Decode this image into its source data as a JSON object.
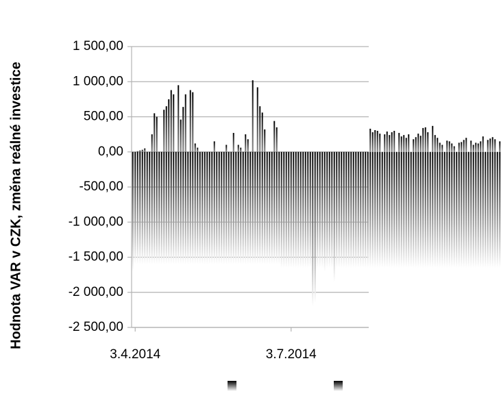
{
  "chart_data": {
    "type": "bar",
    "ylabel": "Hodnota VAR v CZK, změna reálné investice",
    "ylim": [
      -2500,
      1500
    ],
    "yticks": [
      {
        "value": -2500,
        "label": "-2 500,00"
      },
      {
        "value": -2000,
        "label": "-2 000,00"
      },
      {
        "value": -1500,
        "label": "-1 500,00"
      },
      {
        "value": -1000,
        "label": "-1 000,00"
      },
      {
        "value": -500,
        "label": "-500,00"
      },
      {
        "value": 0,
        "label": "0,00"
      },
      {
        "value": 500,
        "label": "500,00"
      },
      {
        "value": 1000,
        "label": "1 000,00"
      },
      {
        "value": 1500,
        "label": "1 500,00"
      }
    ],
    "grid": true,
    "categories": [
      null,
      "3.4.2014",
      null,
      null,
      null,
      null,
      null,
      null,
      null,
      null,
      null,
      null,
      null,
      null,
      null,
      null,
      null,
      null,
      null,
      null,
      null,
      null,
      null,
      null,
      null,
      null,
      null,
      null,
      null,
      null,
      null,
      null,
      null,
      null,
      null,
      null,
      null,
      null,
      null,
      null,
      null,
      null,
      null,
      null,
      null,
      null,
      null,
      null,
      null,
      null,
      null,
      null,
      null,
      null,
      null,
      null,
      null,
      null,
      null,
      null,
      null,
      null,
      null,
      null,
      null,
      null,
      "3.7.2014",
      null,
      null,
      null,
      null,
      null,
      null,
      null,
      null,
      null,
      null,
      null,
      null,
      null,
      null,
      null,
      null,
      null,
      null,
      null,
      null,
      null,
      null,
      null,
      null,
      null,
      null,
      null,
      null,
      null,
      null,
      null,
      null,
      null,
      null,
      null,
      null,
      null,
      null,
      null,
      null,
      null,
      null,
      null,
      null,
      null,
      null,
      null,
      null,
      null,
      null,
      null,
      null,
      null,
      null,
      null,
      null,
      null,
      null,
      null,
      null,
      null,
      null,
      null,
      null,
      null,
      null,
      null,
      null,
      null,
      null,
      null,
      null,
      null,
      null,
      null,
      null,
      null,
      null,
      null,
      null,
      null,
      null,
      null,
      null,
      null,
      null,
      null
    ],
    "series": [
      {
        "color": "#000000",
        "values": [
          0,
          0,
          10,
          20,
          30,
          50,
          0,
          0,
          250,
          550,
          500,
          0,
          0,
          600,
          650,
          750,
          880,
          820,
          0,
          950,
          460,
          640,
          820,
          0,
          880,
          850,
          120,
          60,
          0,
          0,
          0,
          0,
          0,
          0,
          150,
          0,
          0,
          0,
          0,
          100,
          0,
          0,
          270,
          0,
          100,
          60,
          0,
          250,
          180,
          0,
          1020,
          0,
          920,
          650,
          560,
          320,
          0,
          0,
          0,
          440,
          350,
          0,
          0,
          0,
          0,
          0,
          0,
          0,
          0,
          0,
          0,
          0,
          0,
          0,
          0,
          0,
          0,
          0,
          0,
          0,
          0,
          0,
          0,
          0,
          0,
          0,
          0,
          0,
          0,
          0,
          0,
          0,
          0,
          0,
          0,
          0,
          0,
          0,
          0,
          330,
          280,
          310,
          300,
          260,
          0,
          250,
          290,
          240,
          280,
          300,
          0,
          270,
          220,
          240,
          200,
          250,
          0,
          180,
          210,
          260,
          230,
          340,
          350,
          280,
          0,
          370,
          240,
          200,
          130,
          100,
          0,
          160,
          150,
          120,
          80,
          0,
          130,
          140,
          170,
          200,
          0,
          160,
          100,
          130,
          120,
          150,
          220,
          0,
          170,
          190,
          210,
          180,
          0,
          150
        ]
      },
      {
        "color": "#000000",
        "values": [
          -1700,
          -1600,
          -1600,
          -1600,
          -1600,
          -1600,
          -1600,
          -1600,
          -1600,
          -1600,
          -1600,
          -1600,
          -1600,
          -1600,
          -1600,
          -1600,
          -1600,
          -1600,
          -1600,
          -1600,
          -1600,
          -1600,
          -1600,
          -1600,
          -1600,
          -1600,
          -1600,
          -1600,
          -1600,
          -1600,
          -1600,
          -1600,
          -1600,
          -1600,
          -1600,
          -1600,
          -1600,
          -1600,
          -1600,
          -1600,
          -1600,
          -1600,
          -1600,
          -1600,
          -1600,
          -1600,
          -1600,
          -1600,
          -1600,
          -1600,
          -1600,
          -1600,
          -1600,
          -1600,
          -1600,
          -1600,
          -1600,
          -1600,
          -1600,
          -1600,
          -1600,
          -1600,
          -1650,
          -1650,
          -1650,
          -1650,
          -1650,
          -1650,
          -1650,
          -1650,
          -1650,
          -1650,
          -1650,
          -1650,
          -1650,
          -2200,
          -2150,
          -1650,
          -1650,
          -1650,
          -1700,
          -1650,
          -1650,
          -1650,
          -1850,
          -1650,
          -1650,
          -1650,
          -1650,
          -1650,
          -1650,
          -1650,
          -1650,
          -1650,
          -1650,
          -1650,
          -1650,
          -1650,
          -1650,
          -1650,
          -1650,
          -1650,
          -1650,
          -1650,
          -1650,
          -1650,
          -1650,
          -1650,
          -1650,
          -1650,
          -1650,
          -1650,
          -1650,
          -1650,
          -1650,
          -1650,
          -1650,
          -1650,
          -1650,
          -1650,
          -1650,
          -1650,
          -1650,
          -1650,
          -1650,
          -1650,
          -1650,
          -1650,
          -1650,
          -1650,
          -1650,
          -1650,
          -1650,
          -1650,
          -1650,
          -1650,
          -1650,
          -1650,
          -1650,
          -1650,
          -1650,
          -1650,
          -1650,
          -1650,
          -1650,
          -1650,
          -1650,
          -1650,
          -1650,
          -1650,
          -1650,
          -1650,
          -1650,
          -1650
        ]
      }
    ]
  }
}
